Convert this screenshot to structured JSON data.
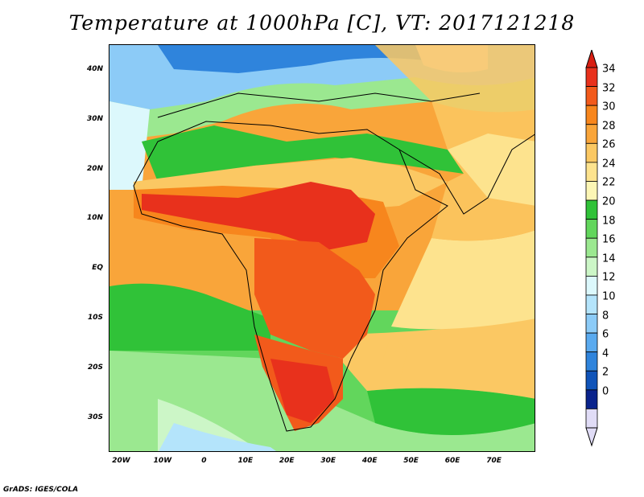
{
  "title": "Temperature at 1000hPa [C], VT: 2017121218",
  "credit": "GrADS: IGES/COLA",
  "map": {
    "lon_range": [
      -23,
      80
    ],
    "lat_range": [
      -37,
      45
    ],
    "lat_ticks": [
      {
        "value": 40,
        "label": "40N"
      },
      {
        "value": 30,
        "label": "30N"
      },
      {
        "value": 20,
        "label": "20N"
      },
      {
        "value": 10,
        "label": "10N"
      },
      {
        "value": 0,
        "label": "EQ"
      },
      {
        "value": -10,
        "label": "10S"
      },
      {
        "value": -20,
        "label": "20S"
      },
      {
        "value": -30,
        "label": "30S"
      }
    ],
    "lon_ticks": [
      {
        "value": -20,
        "label": "20W"
      },
      {
        "value": -10,
        "label": "10W"
      },
      {
        "value": 0,
        "label": "0"
      },
      {
        "value": 10,
        "label": "10E"
      },
      {
        "value": 20,
        "label": "20E"
      },
      {
        "value": 30,
        "label": "30E"
      },
      {
        "value": 40,
        "label": "40E"
      },
      {
        "value": 50,
        "label": "50E"
      },
      {
        "value": 60,
        "label": "60E"
      },
      {
        "value": 70,
        "label": "70E"
      }
    ]
  },
  "colorbar": {
    "labels": [
      "34",
      "32",
      "30",
      "28",
      "26",
      "24",
      "22",
      "20",
      "18",
      "16",
      "14",
      "12",
      "10",
      "8",
      "6",
      "4",
      "2",
      "0"
    ],
    "colors": [
      "#e8311c",
      "#f25a1b",
      "#f7861d",
      "#f9a53a",
      "#fbc863",
      "#fde38e",
      "#fcf6b5",
      "#30c238",
      "#62d65c",
      "#9be890",
      "#ccf6c7",
      "#dcf8fc",
      "#b4e4fb",
      "#8ccbf7",
      "#5aaaef",
      "#2f84dc",
      "#1054b9",
      "#0a238c",
      "#e0dcf6"
    ],
    "top_arrow_color": "#d81e12",
    "bottom_arrow_color": "#e0dcf6"
  }
}
